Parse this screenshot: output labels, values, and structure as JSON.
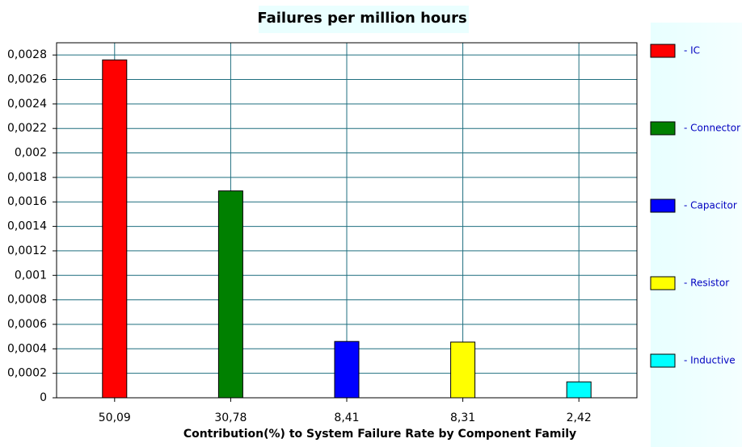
{
  "chart_data": {
    "type": "bar",
    "title": "Failures per million hours",
    "x_label": "Contribution(%) to System Failure Rate by Component Family",
    "categories": [
      "50,09",
      "30,78",
      "8,41",
      "8,31",
      "2,42"
    ],
    "series": [
      {
        "name": "- IC",
        "color": "#ff0000",
        "values": [
          0.00276,
          null,
          null,
          null,
          null
        ]
      },
      {
        "name": "- Connector",
        "color": "#008000",
        "values": [
          null,
          0.00169,
          null,
          null,
          null
        ]
      },
      {
        "name": "- Capacitor",
        "color": "#0000ff",
        "values": [
          null,
          null,
          0.00046,
          null,
          null
        ]
      },
      {
        "name": "- Resistor",
        "color": "#ffff00",
        "values": [
          null,
          null,
          null,
          0.000455,
          null
        ]
      },
      {
        "name": "- Inductive",
        "color": "#00ffff",
        "values": [
          null,
          null,
          null,
          null,
          0.00013
        ]
      }
    ],
    "ylim": [
      0,
      0.0029
    ],
    "yticks": [
      0,
      {
        "value": 0.0002,
        "label": "0,0002"
      },
      {
        "value": 0.0004,
        "label": "0,0004"
      },
      {
        "value": 0.0006,
        "label": "0,0006"
      },
      {
        "value": 0.0008,
        "label": "0,0008"
      },
      {
        "value": 0.001,
        "label": "0,001"
      },
      {
        "value": 0.0012,
        "label": "0,0012"
      },
      {
        "value": 0.0014,
        "label": "0,0014"
      },
      {
        "value": 0.0016,
        "label": "0,0016"
      },
      {
        "value": 0.0018,
        "label": "0,0018"
      },
      {
        "value": 0.002,
        "label": "0,002"
      },
      {
        "value": 0.0022,
        "label": "0,0022"
      },
      {
        "value": 0.0024,
        "label": "0,0024"
      },
      {
        "value": 0.0026,
        "label": "0,0026"
      },
      {
        "value": 0.0028,
        "label": "0,0028"
      }
    ],
    "grid": true
  }
}
